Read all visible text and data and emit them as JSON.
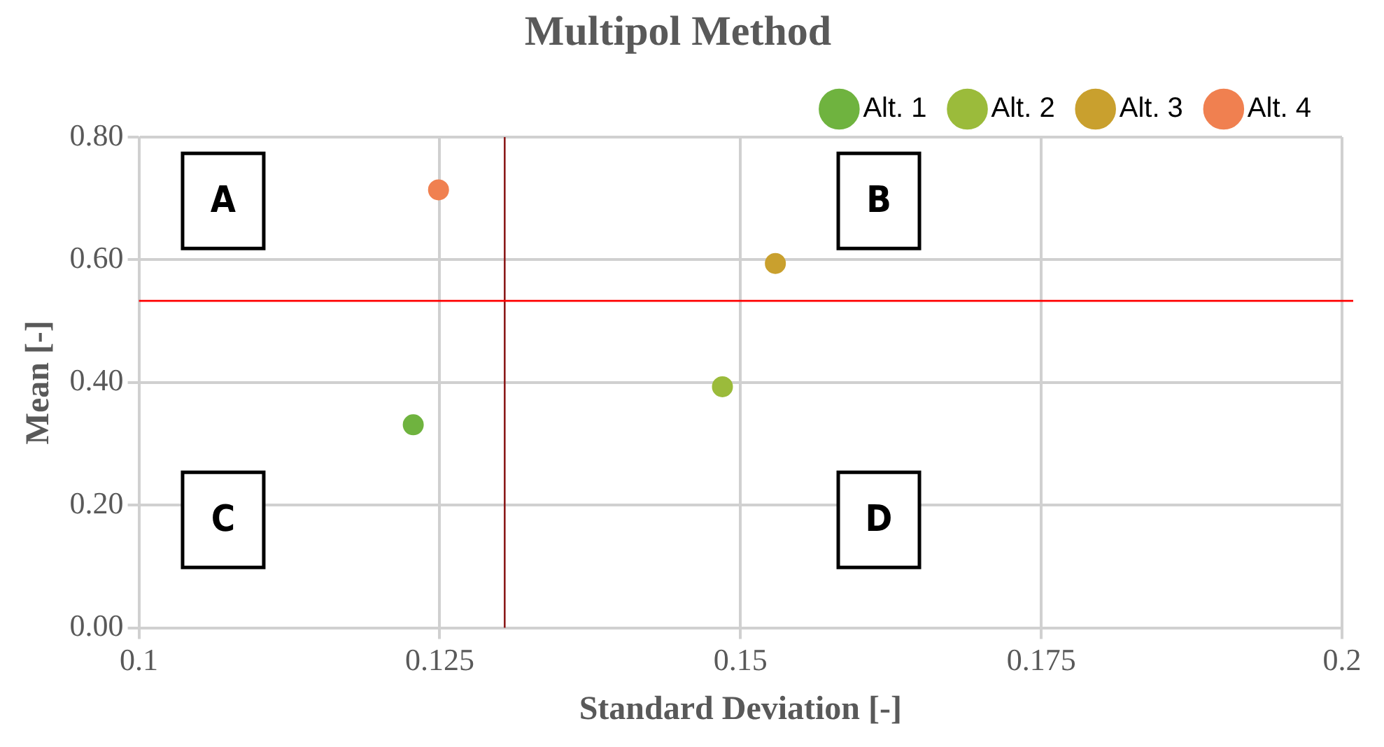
{
  "chart_data": {
    "type": "scatter",
    "title": "Multipol Method",
    "xlabel": "Standard Deviation [-]",
    "ylabel": "Mean [-]",
    "xlim": [
      0.1,
      0.2
    ],
    "xticks": [
      0.1,
      0.125,
      0.15,
      0.175,
      0.2
    ],
    "ylim": [
      0,
      0.8
    ],
    "yticks": [
      {
        "value": 0,
        "label": "0.00"
      },
      {
        "value": 0.2,
        "label": "0.20"
      },
      {
        "value": 0.4,
        "label": "0.40"
      },
      {
        "value": 0.6,
        "label": "0.60"
      },
      {
        "value": 0.8,
        "label": "0.80"
      }
    ],
    "series": [
      {
        "name": "Alt. 1",
        "color": "#6fb33f",
        "x": [
          0.1228
        ],
        "values": [
          0.331
        ]
      },
      {
        "name": "Alt. 2",
        "color": "#9bbb3b",
        "x": [
          0.1485
        ],
        "values": [
          0.393
        ]
      },
      {
        "name": "Alt. 3",
        "color": "#c9a02e",
        "x": [
          0.1529
        ],
        "values": [
          0.594
        ]
      },
      {
        "name": "Alt. 4",
        "color": "#f08050",
        "x": [
          0.1249
        ],
        "values": [
          0.714
        ]
      }
    ],
    "ref_lines": [
      {
        "axis": "x",
        "value": 0.1304,
        "color": "#8b1a1a"
      },
      {
        "axis": "y",
        "value": 0.533,
        "color": "#ff0000"
      }
    ],
    "annotations": [
      "A",
      "B",
      "C",
      "D"
    ],
    "grid": true,
    "legend": "top right",
    "marker": "circle"
  }
}
